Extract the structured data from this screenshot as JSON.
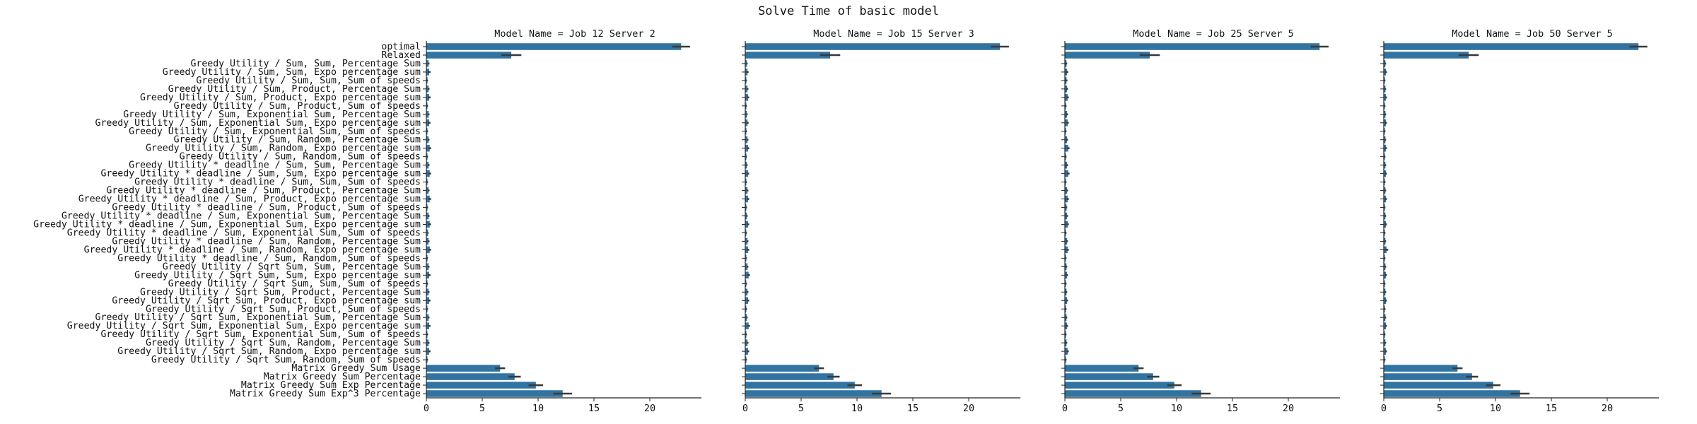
{
  "suptitle": "Solve Time of basic model",
  "colors": {
    "bar": "#3274a1",
    "error": "#3a3a3a",
    "axis": "#222222",
    "text": "#111111"
  },
  "chart_data": {
    "type": "bar",
    "orientation": "horizontal",
    "facet_label": "Model Name",
    "categories": [
      "optimal",
      "Relaxed",
      "Greedy Utility / Sum, Sum, Percentage Sum",
      "Greedy Utility / Sum, Sum, Expo percentage sum",
      "Greedy Utility / Sum, Sum, Sum of speeds",
      "Greedy Utility / Sum, Product, Percentage Sum",
      "Greedy Utility / Sum, Product, Expo percentage sum",
      "Greedy Utility / Sum, Product, Sum of speeds",
      "Greedy Utility / Sum, Exponential Sum, Percentage Sum",
      "Greedy Utility / Sum, Exponential Sum, Expo percentage sum",
      "Greedy Utility / Sum, Exponential Sum, Sum of speeds",
      "Greedy Utility / Sum, Random, Percentage Sum",
      "Greedy Utility / Sum, Random, Expo percentage sum",
      "Greedy Utility / Sum, Random, Sum of speeds",
      "Greedy Utility * deadline / Sum, Sum, Percentage Sum",
      "Greedy Utility * deadline / Sum, Sum, Expo percentage sum",
      "Greedy Utility * deadline / Sum, Sum, Sum of speeds",
      "Greedy Utility * deadline / Sum, Product, Percentage Sum",
      "Greedy Utility * deadline / Sum, Product, Expo percentage sum",
      "Greedy Utility * deadline / Sum, Product, Sum of speeds",
      "Greedy Utility * deadline / Sum, Exponential Sum, Percentage Sum",
      "Greedy Utility * deadline / Sum, Exponential Sum, Expo percentage sum",
      "Greedy Utility * deadline / Sum, Exponential Sum, Sum of speeds",
      "Greedy Utility * deadline / Sum, Random, Percentage Sum",
      "Greedy Utility * deadline / Sum, Random, Expo percentage sum",
      "Greedy Utility * deadline / Sum, Random, Sum of speeds",
      "Greedy Utility / Sqrt Sum, Sum, Percentage Sum",
      "Greedy Utility / Sqrt Sum, Sum, Expo percentage sum",
      "Greedy Utility / Sqrt Sum, Sum, Sum of speeds",
      "Greedy Utility / Sqrt Sum, Product, Percentage Sum",
      "Greedy Utility / Sqrt Sum, Product, Expo percentage sum",
      "Greedy Utility / Sqrt Sum, Product, Sum of speeds",
      "Greedy Utility / Sqrt Sum, Exponential Sum, Percentage Sum",
      "Greedy Utility / Sqrt Sum, Exponential Sum, Expo percentage sum",
      "Greedy Utility / Sqrt Sum, Exponential Sum, Sum of speeds",
      "Greedy Utility / Sqrt Sum, Random, Percentage Sum",
      "Greedy Utility / Sqrt Sum, Random, Expo percentage sum",
      "Greedy Utility / Sqrt Sum, Random, Sum of speeds",
      "Matrix Greedy Sum Usage",
      "Matrix Greedy Sum Percentage",
      "Matrix Greedy Sum Exp Percentage",
      "Matrix Greedy Sum Exp^3 Percentage"
    ],
    "xlim": [
      0,
      25
    ],
    "xticks": [
      0,
      5,
      10,
      15,
      20
    ],
    "grid": false,
    "panels": [
      {
        "title": "Model Name =  Job 12 Server 2",
        "values": [
          22.8,
          7.6,
          0.2,
          0.25,
          0.1,
          0.2,
          0.25,
          0.1,
          0.2,
          0.25,
          0.1,
          0.2,
          0.3,
          0.1,
          0.2,
          0.3,
          0.1,
          0.2,
          0.3,
          0.1,
          0.2,
          0.3,
          0.15,
          0.2,
          0.3,
          0.1,
          0.2,
          0.25,
          0.1,
          0.2,
          0.25,
          0.1,
          0.2,
          0.25,
          0.1,
          0.2,
          0.25,
          0.1,
          6.6,
          7.9,
          9.8,
          12.2
        ],
        "errors": [
          0.8,
          0.9,
          0.08,
          0.12,
          0.05,
          0.08,
          0.12,
          0.05,
          0.08,
          0.12,
          0.05,
          0.08,
          0.12,
          0.05,
          0.08,
          0.12,
          0.05,
          0.08,
          0.12,
          0.05,
          0.08,
          0.12,
          0.05,
          0.08,
          0.12,
          0.05,
          0.08,
          0.12,
          0.05,
          0.08,
          0.12,
          0.05,
          0.08,
          0.12,
          0.05,
          0.08,
          0.12,
          0.05,
          0.45,
          0.55,
          0.65,
          0.85
        ]
      },
      {
        "title": "Model Name =  Job 15 Server 3",
        "values": [
          22.8,
          7.6,
          0.15,
          0.2,
          0.1,
          0.2,
          0.25,
          0.1,
          0.15,
          0.2,
          0.1,
          0.2,
          0.25,
          0.1,
          0.15,
          0.25,
          0.1,
          0.2,
          0.25,
          0.1,
          0.15,
          0.25,
          0.1,
          0.2,
          0.25,
          0.1,
          0.2,
          0.3,
          0.1,
          0.2,
          0.25,
          0.1,
          0.15,
          0.3,
          0.1,
          0.2,
          0.25,
          0.1,
          6.6,
          7.9,
          9.8,
          12.2
        ],
        "errors": [
          0.8,
          0.9,
          0.06,
          0.1,
          0.05,
          0.08,
          0.1,
          0.05,
          0.06,
          0.1,
          0.05,
          0.08,
          0.1,
          0.05,
          0.06,
          0.1,
          0.05,
          0.08,
          0.1,
          0.05,
          0.06,
          0.1,
          0.05,
          0.08,
          0.1,
          0.05,
          0.08,
          0.12,
          0.05,
          0.08,
          0.1,
          0.05,
          0.06,
          0.12,
          0.05,
          0.08,
          0.1,
          0.05,
          0.45,
          0.55,
          0.65,
          0.85
        ]
      },
      {
        "title": "Model Name =  Job 25 Server 5",
        "values": [
          22.8,
          7.6,
          0.15,
          0.2,
          0.15,
          0.2,
          0.25,
          0.1,
          0.2,
          0.25,
          0.1,
          0.2,
          0.3,
          0.1,
          0.2,
          0.3,
          0.1,
          0.2,
          0.25,
          0.15,
          0.2,
          0.25,
          0.1,
          0.2,
          0.25,
          0.1,
          0.15,
          0.2,
          0.1,
          0.15,
          0.2,
          0.1,
          0.15,
          0.2,
          0.1,
          0.15,
          0.25,
          0.1,
          6.6,
          7.9,
          9.8,
          12.2
        ],
        "errors": [
          0.8,
          0.9,
          0.06,
          0.1,
          0.08,
          0.08,
          0.1,
          0.05,
          0.08,
          0.1,
          0.05,
          0.08,
          0.12,
          0.05,
          0.08,
          0.12,
          0.05,
          0.08,
          0.1,
          0.06,
          0.08,
          0.1,
          0.05,
          0.08,
          0.1,
          0.05,
          0.06,
          0.08,
          0.05,
          0.06,
          0.08,
          0.05,
          0.06,
          0.08,
          0.05,
          0.06,
          0.1,
          0.05,
          0.45,
          0.55,
          0.65,
          0.85
        ]
      },
      {
        "title": "Model Name =  Job 50 Server 5",
        "values": [
          22.8,
          7.6,
          0.15,
          0.2,
          0.1,
          0.15,
          0.2,
          0.1,
          0.15,
          0.2,
          0.1,
          0.15,
          0.2,
          0.1,
          0.15,
          0.2,
          0.1,
          0.15,
          0.2,
          0.1,
          0.15,
          0.2,
          0.1,
          0.15,
          0.25,
          0.1,
          0.15,
          0.2,
          0.1,
          0.15,
          0.2,
          0.1,
          0.15,
          0.2,
          0.1,
          0.15,
          0.2,
          0.1,
          6.6,
          7.9,
          9.8,
          12.2
        ],
        "errors": [
          0.8,
          0.9,
          0.06,
          0.08,
          0.05,
          0.06,
          0.08,
          0.05,
          0.06,
          0.08,
          0.05,
          0.06,
          0.08,
          0.05,
          0.06,
          0.08,
          0.05,
          0.06,
          0.08,
          0.05,
          0.06,
          0.08,
          0.05,
          0.06,
          0.15,
          0.05,
          0.06,
          0.08,
          0.05,
          0.06,
          0.08,
          0.05,
          0.06,
          0.08,
          0.05,
          0.06,
          0.08,
          0.05,
          0.45,
          0.55,
          0.65,
          0.85
        ]
      }
    ]
  }
}
